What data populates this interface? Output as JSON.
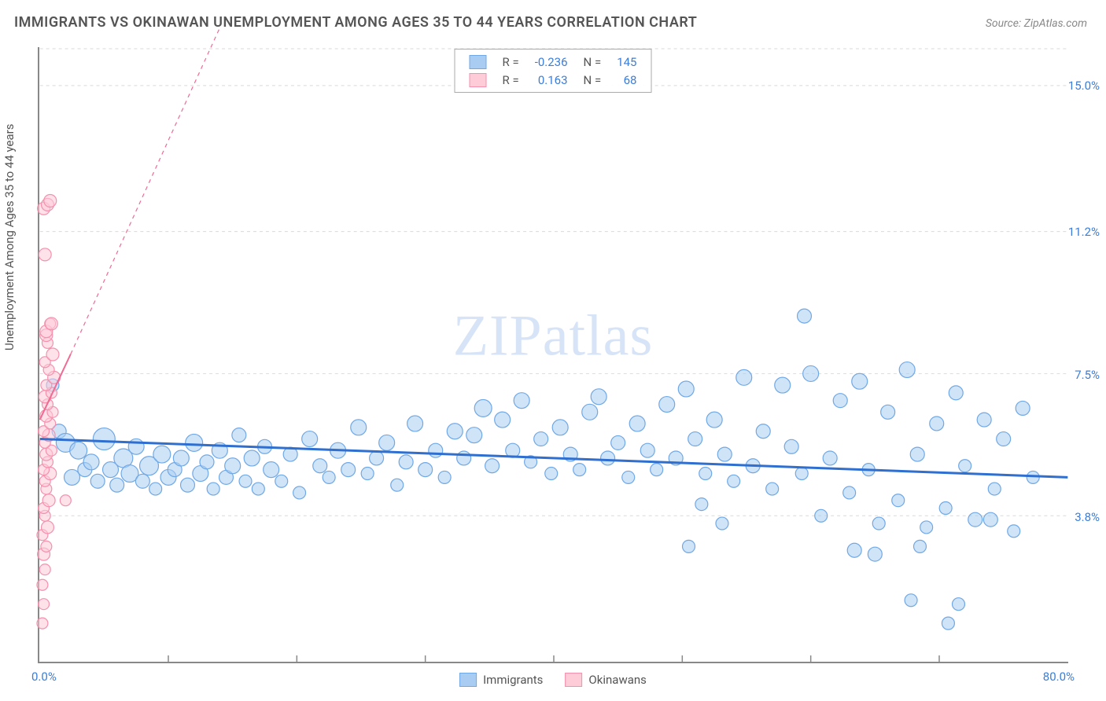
{
  "title": "IMMIGRANTS VS OKINAWAN UNEMPLOYMENT AMONG AGES 35 TO 44 YEARS CORRELATION CHART",
  "source": "Source: ZipAtlas.com",
  "ylabel": "Unemployment Among Ages 35 to 44 years",
  "watermark_a": "ZIP",
  "watermark_b": "atlas",
  "chart": {
    "type": "scatter",
    "xlim": [
      0,
      80
    ],
    "ylim": [
      0,
      16
    ],
    "x_min_label": "0.0%",
    "x_max_label": "80.0%",
    "y_ticks": [
      3.8,
      7.5,
      11.2,
      15.0
    ],
    "y_tick_labels": [
      "3.8%",
      "7.5%",
      "11.2%",
      "15.0%"
    ],
    "x_tick_positions": [
      10,
      20,
      30,
      40,
      50,
      60,
      70
    ],
    "grid_color": "#d9d9d9",
    "background": "#ffffff",
    "series": [
      {
        "name": "Immigrants",
        "fill": "#a9cdf2",
        "stroke": "#6fa8e6",
        "fill_opacity": 0.55,
        "trend": {
          "y_at_x0": 5.8,
          "y_at_xmax": 4.8,
          "color": "#2f6fd0",
          "width": 3
        },
        "R": "-0.236",
        "N": "145",
        "points": [
          {
            "x": 1.0,
            "y": 7.2,
            "r": 8
          },
          {
            "x": 1.5,
            "y": 6.0,
            "r": 9
          },
          {
            "x": 2.0,
            "y": 5.7,
            "r": 12
          },
          {
            "x": 2.5,
            "y": 4.8,
            "r": 10
          },
          {
            "x": 3.0,
            "y": 5.5,
            "r": 11
          },
          {
            "x": 3.5,
            "y": 5.0,
            "r": 9
          },
          {
            "x": 4.0,
            "y": 5.2,
            "r": 10
          },
          {
            "x": 4.5,
            "y": 4.7,
            "r": 9
          },
          {
            "x": 5.0,
            "y": 5.8,
            "r": 14
          },
          {
            "x": 5.5,
            "y": 5.0,
            "r": 10
          },
          {
            "x": 6.0,
            "y": 4.6,
            "r": 9
          },
          {
            "x": 6.5,
            "y": 5.3,
            "r": 12
          },
          {
            "x": 7.0,
            "y": 4.9,
            "r": 11
          },
          {
            "x": 7.5,
            "y": 5.6,
            "r": 10
          },
          {
            "x": 8.0,
            "y": 4.7,
            "r": 9
          },
          {
            "x": 8.5,
            "y": 5.1,
            "r": 12
          },
          {
            "x": 9.0,
            "y": 4.5,
            "r": 8
          },
          {
            "x": 9.5,
            "y": 5.4,
            "r": 11
          },
          {
            "x": 10.0,
            "y": 4.8,
            "r": 10
          },
          {
            "x": 10.5,
            "y": 5.0,
            "r": 9
          },
          {
            "x": 11.0,
            "y": 5.3,
            "r": 10
          },
          {
            "x": 11.5,
            "y": 4.6,
            "r": 9
          },
          {
            "x": 12.0,
            "y": 5.7,
            "r": 11
          },
          {
            "x": 12.5,
            "y": 4.9,
            "r": 10
          },
          {
            "x": 13.0,
            "y": 5.2,
            "r": 9
          },
          {
            "x": 13.5,
            "y": 4.5,
            "r": 8
          },
          {
            "x": 14.0,
            "y": 5.5,
            "r": 10
          },
          {
            "x": 14.5,
            "y": 4.8,
            "r": 9
          },
          {
            "x": 15.0,
            "y": 5.1,
            "r": 10
          },
          {
            "x": 15.5,
            "y": 5.9,
            "r": 9
          },
          {
            "x": 16.0,
            "y": 4.7,
            "r": 8
          },
          {
            "x": 16.5,
            "y": 5.3,
            "r": 10
          },
          {
            "x": 17.0,
            "y": 4.5,
            "r": 8
          },
          {
            "x": 17.5,
            "y": 5.6,
            "r": 9
          },
          {
            "x": 18.0,
            "y": 5.0,
            "r": 10
          },
          {
            "x": 18.8,
            "y": 4.7,
            "r": 8
          },
          {
            "x": 19.5,
            "y": 5.4,
            "r": 9
          },
          {
            "x": 20.2,
            "y": 4.4,
            "r": 8
          },
          {
            "x": 21.0,
            "y": 5.8,
            "r": 10
          },
          {
            "x": 21.8,
            "y": 5.1,
            "r": 9
          },
          {
            "x": 22.5,
            "y": 4.8,
            "r": 8
          },
          {
            "x": 23.2,
            "y": 5.5,
            "r": 10
          },
          {
            "x": 24.0,
            "y": 5.0,
            "r": 9
          },
          {
            "x": 24.8,
            "y": 6.1,
            "r": 10
          },
          {
            "x": 25.5,
            "y": 4.9,
            "r": 8
          },
          {
            "x": 26.2,
            "y": 5.3,
            "r": 9
          },
          {
            "x": 27.0,
            "y": 5.7,
            "r": 10
          },
          {
            "x": 27.8,
            "y": 4.6,
            "r": 8
          },
          {
            "x": 28.5,
            "y": 5.2,
            "r": 9
          },
          {
            "x": 29.2,
            "y": 6.2,
            "r": 10
          },
          {
            "x": 30.0,
            "y": 5.0,
            "r": 9
          },
          {
            "x": 30.8,
            "y": 5.5,
            "r": 9
          },
          {
            "x": 31.5,
            "y": 4.8,
            "r": 8
          },
          {
            "x": 32.3,
            "y": 6.0,
            "r": 10
          },
          {
            "x": 33.0,
            "y": 5.3,
            "r": 9
          },
          {
            "x": 33.8,
            "y": 5.9,
            "r": 10
          },
          {
            "x": 34.5,
            "y": 6.6,
            "r": 11
          },
          {
            "x": 35.2,
            "y": 5.1,
            "r": 9
          },
          {
            "x": 36.0,
            "y": 6.3,
            "r": 10
          },
          {
            "x": 36.8,
            "y": 5.5,
            "r": 9
          },
          {
            "x": 37.5,
            "y": 6.8,
            "r": 10
          },
          {
            "x": 38.2,
            "y": 5.2,
            "r": 8
          },
          {
            "x": 39.0,
            "y": 5.8,
            "r": 9
          },
          {
            "x": 39.8,
            "y": 4.9,
            "r": 8
          },
          {
            "x": 40.5,
            "y": 6.1,
            "r": 10
          },
          {
            "x": 41.3,
            "y": 5.4,
            "r": 9
          },
          {
            "x": 42.0,
            "y": 5.0,
            "r": 8
          },
          {
            "x": 42.8,
            "y": 6.5,
            "r": 10
          },
          {
            "x": 43.5,
            "y": 6.9,
            "r": 10
          },
          {
            "x": 44.2,
            "y": 5.3,
            "r": 9
          },
          {
            "x": 45.0,
            "y": 5.7,
            "r": 9
          },
          {
            "x": 45.8,
            "y": 4.8,
            "r": 8
          },
          {
            "x": 46.5,
            "y": 6.2,
            "r": 10
          },
          {
            "x": 47.3,
            "y": 5.5,
            "r": 9
          },
          {
            "x": 48.0,
            "y": 5.0,
            "r": 8
          },
          {
            "x": 48.8,
            "y": 6.7,
            "r": 10
          },
          {
            "x": 49.5,
            "y": 5.3,
            "r": 9
          },
          {
            "x": 50.3,
            "y": 7.1,
            "r": 10
          },
          {
            "x": 50.5,
            "y": 3.0,
            "r": 8
          },
          {
            "x": 51.0,
            "y": 5.8,
            "r": 9
          },
          {
            "x": 51.5,
            "y": 4.1,
            "r": 8
          },
          {
            "x": 51.8,
            "y": 4.9,
            "r": 8
          },
          {
            "x": 52.5,
            "y": 6.3,
            "r": 10
          },
          {
            "x": 53.1,
            "y": 3.6,
            "r": 8
          },
          {
            "x": 53.3,
            "y": 5.4,
            "r": 9
          },
          {
            "x": 54.0,
            "y": 4.7,
            "r": 8
          },
          {
            "x": 54.8,
            "y": 7.4,
            "r": 10
          },
          {
            "x": 55.5,
            "y": 5.1,
            "r": 9
          },
          {
            "x": 56.3,
            "y": 6.0,
            "r": 9
          },
          {
            "x": 57.0,
            "y": 4.5,
            "r": 8
          },
          {
            "x": 57.8,
            "y": 7.2,
            "r": 10
          },
          {
            "x": 58.5,
            "y": 5.6,
            "r": 9
          },
          {
            "x": 59.3,
            "y": 4.9,
            "r": 8
          },
          {
            "x": 59.5,
            "y": 9.0,
            "r": 9
          },
          {
            "x": 60.0,
            "y": 7.5,
            "r": 10
          },
          {
            "x": 60.8,
            "y": 3.8,
            "r": 8
          },
          {
            "x": 61.5,
            "y": 5.3,
            "r": 9
          },
          {
            "x": 62.3,
            "y": 6.8,
            "r": 9
          },
          {
            "x": 63.0,
            "y": 4.4,
            "r": 8
          },
          {
            "x": 63.4,
            "y": 2.9,
            "r": 9
          },
          {
            "x": 63.8,
            "y": 7.3,
            "r": 10
          },
          {
            "x": 64.5,
            "y": 5.0,
            "r": 8
          },
          {
            "x": 65.0,
            "y": 2.8,
            "r": 9
          },
          {
            "x": 65.3,
            "y": 3.6,
            "r": 8
          },
          {
            "x": 66.0,
            "y": 6.5,
            "r": 9
          },
          {
            "x": 66.8,
            "y": 4.2,
            "r": 8
          },
          {
            "x": 67.5,
            "y": 7.6,
            "r": 10
          },
          {
            "x": 67.8,
            "y": 1.6,
            "r": 8
          },
          {
            "x": 68.3,
            "y": 5.4,
            "r": 9
          },
          {
            "x": 68.5,
            "y": 3.0,
            "r": 8
          },
          {
            "x": 69.0,
            "y": 3.5,
            "r": 8
          },
          {
            "x": 69.8,
            "y": 6.2,
            "r": 9
          },
          {
            "x": 70.5,
            "y": 4.0,
            "r": 8
          },
          {
            "x": 70.7,
            "y": 1.0,
            "r": 8
          },
          {
            "x": 71.3,
            "y": 7.0,
            "r": 9
          },
          {
            "x": 71.5,
            "y": 1.5,
            "r": 8
          },
          {
            "x": 72.0,
            "y": 5.1,
            "r": 8
          },
          {
            "x": 72.8,
            "y": 3.7,
            "r": 9
          },
          {
            "x": 73.5,
            "y": 6.3,
            "r": 9
          },
          {
            "x": 74.0,
            "y": 3.7,
            "r": 9
          },
          {
            "x": 74.3,
            "y": 4.5,
            "r": 8
          },
          {
            "x": 75.0,
            "y": 5.8,
            "r": 9
          },
          {
            "x": 75.8,
            "y": 3.4,
            "r": 8
          },
          {
            "x": 76.5,
            "y": 6.6,
            "r": 9
          },
          {
            "x": 77.3,
            "y": 4.8,
            "r": 8
          }
        ]
      },
      {
        "name": "Okinawans",
        "fill": "#fecbd8",
        "stroke": "#f590ad",
        "fill_opacity": 0.55,
        "trend": {
          "y_at_x0": 6.3,
          "y_at_xmax": 8.2,
          "x_solid_end": 2.4,
          "color": "#f06a93",
          "width": 2
        },
        "R": "0.163",
        "N": "68",
        "points": [
          {
            "x": 0.2,
            "y": 1.0,
            "r": 7
          },
          {
            "x": 0.3,
            "y": 1.5,
            "r": 7
          },
          {
            "x": 0.2,
            "y": 2.0,
            "r": 7
          },
          {
            "x": 0.4,
            "y": 2.4,
            "r": 7
          },
          {
            "x": 0.3,
            "y": 2.8,
            "r": 8
          },
          {
            "x": 0.5,
            "y": 3.0,
            "r": 7
          },
          {
            "x": 0.2,
            "y": 3.3,
            "r": 7
          },
          {
            "x": 0.6,
            "y": 3.5,
            "r": 8
          },
          {
            "x": 0.4,
            "y": 3.8,
            "r": 7
          },
          {
            "x": 0.3,
            "y": 4.0,
            "r": 7
          },
          {
            "x": 0.7,
            "y": 4.2,
            "r": 8
          },
          {
            "x": 0.5,
            "y": 4.5,
            "r": 7
          },
          {
            "x": 0.4,
            "y": 4.7,
            "r": 7
          },
          {
            "x": 0.8,
            "y": 4.9,
            "r": 8
          },
          {
            "x": 0.3,
            "y": 5.0,
            "r": 7
          },
          {
            "x": 0.6,
            "y": 5.2,
            "r": 7
          },
          {
            "x": 0.5,
            "y": 5.4,
            "r": 8
          },
          {
            "x": 0.9,
            "y": 5.5,
            "r": 7
          },
          {
            "x": 0.4,
            "y": 5.7,
            "r": 7
          },
          {
            "x": 0.7,
            "y": 5.9,
            "r": 8
          },
          {
            "x": 0.3,
            "y": 6.0,
            "r": 7
          },
          {
            "x": 0.8,
            "y": 6.2,
            "r": 7
          },
          {
            "x": 0.5,
            "y": 6.4,
            "r": 8
          },
          {
            "x": 1.0,
            "y": 6.5,
            "r": 7
          },
          {
            "x": 0.6,
            "y": 6.7,
            "r": 7
          },
          {
            "x": 0.4,
            "y": 6.9,
            "r": 8
          },
          {
            "x": 0.9,
            "y": 7.0,
            "r": 7
          },
          {
            "x": 0.5,
            "y": 7.2,
            "r": 7
          },
          {
            "x": 1.1,
            "y": 7.4,
            "r": 8
          },
          {
            "x": 0.7,
            "y": 7.6,
            "r": 7
          },
          {
            "x": 0.4,
            "y": 7.8,
            "r": 7
          },
          {
            "x": 1.0,
            "y": 8.0,
            "r": 8
          },
          {
            "x": 0.6,
            "y": 8.3,
            "r": 7
          },
          {
            "x": 0.5,
            "y": 8.5,
            "r": 8
          },
          {
            "x": 0.5,
            "y": 8.6,
            "r": 8
          },
          {
            "x": 0.8,
            "y": 8.8,
            "r": 7
          },
          {
            "x": 0.9,
            "y": 8.8,
            "r": 8
          },
          {
            "x": 0.4,
            "y": 10.6,
            "r": 8
          },
          {
            "x": 0.3,
            "y": 11.8,
            "r": 8
          },
          {
            "x": 0.6,
            "y": 11.9,
            "r": 8
          },
          {
            "x": 0.8,
            "y": 12.0,
            "r": 8
          },
          {
            "x": 2.0,
            "y": 4.2,
            "r": 7
          }
        ]
      }
    ]
  },
  "legend_top_labels": {
    "R": "R =",
    "N": "N ="
  },
  "legend_bottom": [
    {
      "label": "Immigrants",
      "fill": "#a9cdf2",
      "stroke": "#6fa8e6"
    },
    {
      "label": "Okinawans",
      "fill": "#fecbd8",
      "stroke": "#f590ad"
    }
  ]
}
